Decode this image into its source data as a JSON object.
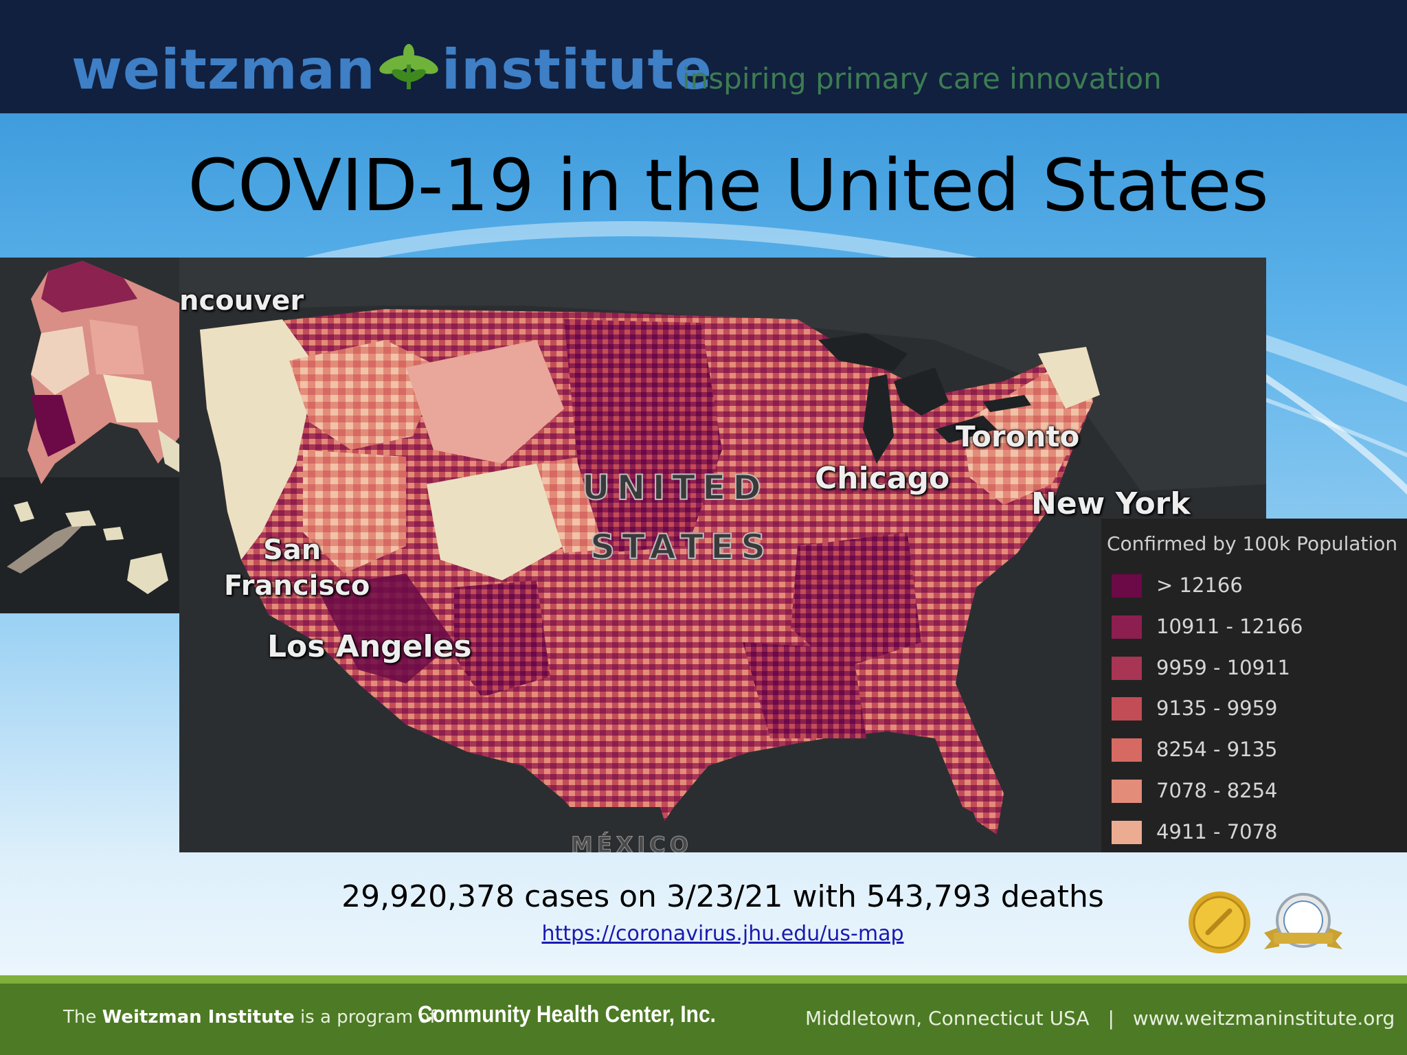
{
  "header": {
    "brand_left": "weitzman",
    "brand_right": "institute",
    "tagline": "inspiring primary care innovation"
  },
  "title": "COVID-19 in the United States",
  "map": {
    "place_labels": {
      "vancouver": "ncouver",
      "toronto": "Toronto",
      "chicago": "Chicago",
      "new_york": "New York",
      "san": "San",
      "francisco": "Francisco",
      "los_angeles": "Los Angeles",
      "mexico": "MÉXICO"
    },
    "country_label_line1": "UNITED",
    "country_label_line2": "STATES",
    "legend": {
      "title": "Confirmed by 100k Population",
      "items": [
        {
          "label": "> 12166",
          "color": "#6b0a47"
        },
        {
          "label": "10911 - 12166",
          "color": "#8c1f4f"
        },
        {
          "label": "9959 - 10911",
          "color": "#a83553"
        },
        {
          "label": "9135 - 9959",
          "color": "#c24d57"
        },
        {
          "label": "8254 - 9135",
          "color": "#d66a63"
        },
        {
          "label": "7078 - 8254",
          "color": "#e38c7a"
        },
        {
          "label": "4911 - 7078",
          "color": "#ecac92"
        }
      ]
    }
  },
  "summary": "29,920,378 cases on 3/23/21 with 543,793 deaths",
  "source_link": "https://coronavirus.jhu.edu/us-map",
  "footer": {
    "prefix_the": "The",
    "institute_name": "Weitzman Institute",
    "program_text": "is a program of",
    "org_name": "Community Health Center, Inc.",
    "location": "Middletown, Connecticut USA",
    "separator": "|",
    "website": "www.weitzmaninstitute.org"
  }
}
